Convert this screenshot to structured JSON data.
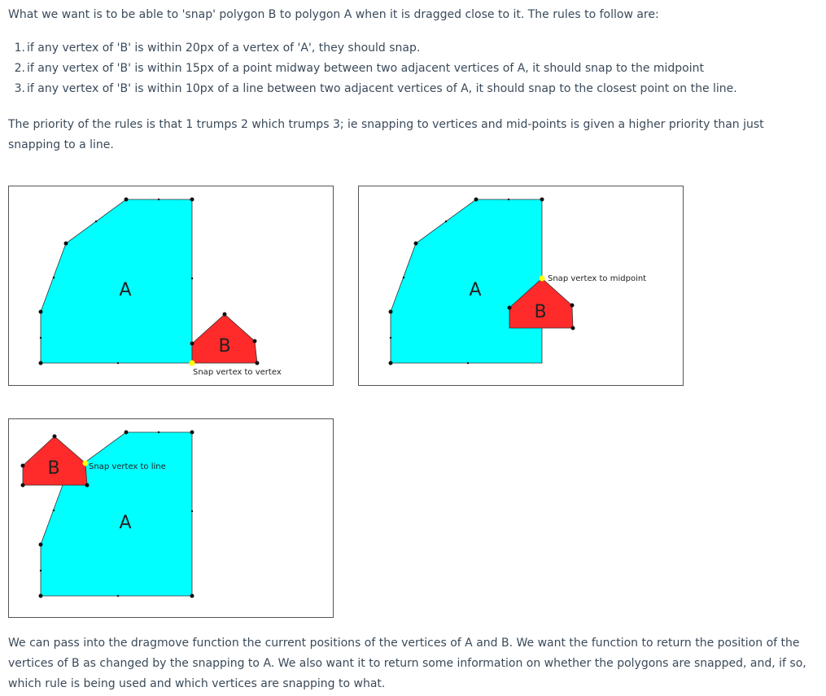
{
  "intro": "What we want is to be able to 'snap' polygon B to polygon A when it is dragged close to it. The rules to follow are:",
  "rules": [
    {
      "num": "1.",
      "text": "if any vertex of 'B' is within 20px of a vertex of 'A', they should snap."
    },
    {
      "num": "2.",
      "text": "if any vertex of 'B' is within 15px of a point midway between two adjacent vertices of A, it should snap to the midpoint"
    },
    {
      "num": "3.",
      "text": "if any vertex of 'B' is within 10px of a line between two adjacent vertices of A, it should snap to the closest point on the line."
    }
  ],
  "priority": "The priority of the rules is that 1 trumps 2 which trumps 3; ie snapping to vertices and mid-points is given a higher priority than just snapping to a line.",
  "figures": {
    "fig1": {
      "label_a": "A",
      "label_b": "B",
      "caption": "Snap vertex to vertex"
    },
    "fig2": {
      "label_a": "A",
      "label_b": "B",
      "caption": "Snap vertex to midpoint"
    },
    "fig3": {
      "label_a": "A",
      "label_b": "B",
      "caption": "Snap vertex to line"
    }
  },
  "colors": {
    "polygon_a": "#00ffff",
    "polygon_b": "#ff2a2a",
    "snap_point": "#ffff00",
    "text": "#3a4a5a"
  },
  "closing": "We can pass into the dragmove function the current positions of the vertices of A and B. We want the function to return the position of the vertices of B as changed by the snapping to A. We also want it to return some information on whether the polygons are snapped, and, if so, which rule is being used and which vertices are snapping to what."
}
